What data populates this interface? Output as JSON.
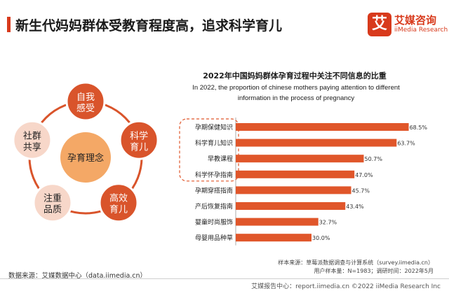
{
  "header": {
    "title": "新生代妈妈群体受教育程度高，追求科学育儿",
    "accent": "#d83a1c"
  },
  "logo": {
    "badge": "艾",
    "name_cn": "艾媒咨询",
    "name_en": "iiMedia Research"
  },
  "diagram": {
    "center": "孕育理念",
    "nodes": [
      {
        "lines": [
          "自我",
          "感受"
        ]
      },
      {
        "lines": [
          "科学",
          "育儿"
        ]
      },
      {
        "lines": [
          "高效",
          "育儿"
        ]
      },
      {
        "lines": [
          "注重",
          "品质"
        ]
      },
      {
        "lines": [
          "社群",
          "共享"
        ]
      }
    ],
    "colors": {
      "dark": "#d9542b",
      "light": "#f7d7c9",
      "center": "#f4a866",
      "ring": "#d9542b"
    }
  },
  "chart_title": {
    "cn": "2022年中国妈妈群体孕育过程中关注不同信息的比重",
    "en_line1": "In 2022, the proportion of chinese mothers paying attention to different",
    "en_line2": "information in the process of pregnancy"
  },
  "chart_data": {
    "type": "bar",
    "orientation": "horizontal",
    "title": "2022年中国妈妈群体孕育过程中关注不同信息的比重",
    "categories": [
      "孕期保健知识",
      "科学育儿知识",
      "早教课程",
      "科学怀孕指南",
      "孕期穿搭指南",
      "产后恢复指南",
      "婴童时尚服饰",
      "母婴用品种草"
    ],
    "values": [
      68.5,
      63.7,
      50.7,
      47.0,
      45.7,
      43.4,
      32.7,
      30.0
    ],
    "labels": [
      "68.5%",
      "63.7%",
      "50.7%",
      "47.0%",
      "45.7%",
      "43.4%",
      "32.7%",
      "30.0%"
    ],
    "unit": "%",
    "xlim": [
      0,
      70
    ],
    "highlighted": [
      "孕期保健知识",
      "科学育儿知识",
      "早教课程",
      "科学怀孕指南"
    ],
    "color": "#e0562a",
    "highlight_box_color": "#e0562a"
  },
  "footnotes": {
    "sample": "样本来源：草莓派数据调查与计算系统（survey.iimedia.cn）",
    "info": "用户样本量：N=1983；调研时间：2022年5月"
  },
  "source": "数据来源：艾媒数据中心（data.iimedia.cn）",
  "footer": "艾媒报告中心：report.iimedia.cn ©2022  iiMedia Research  Inc"
}
